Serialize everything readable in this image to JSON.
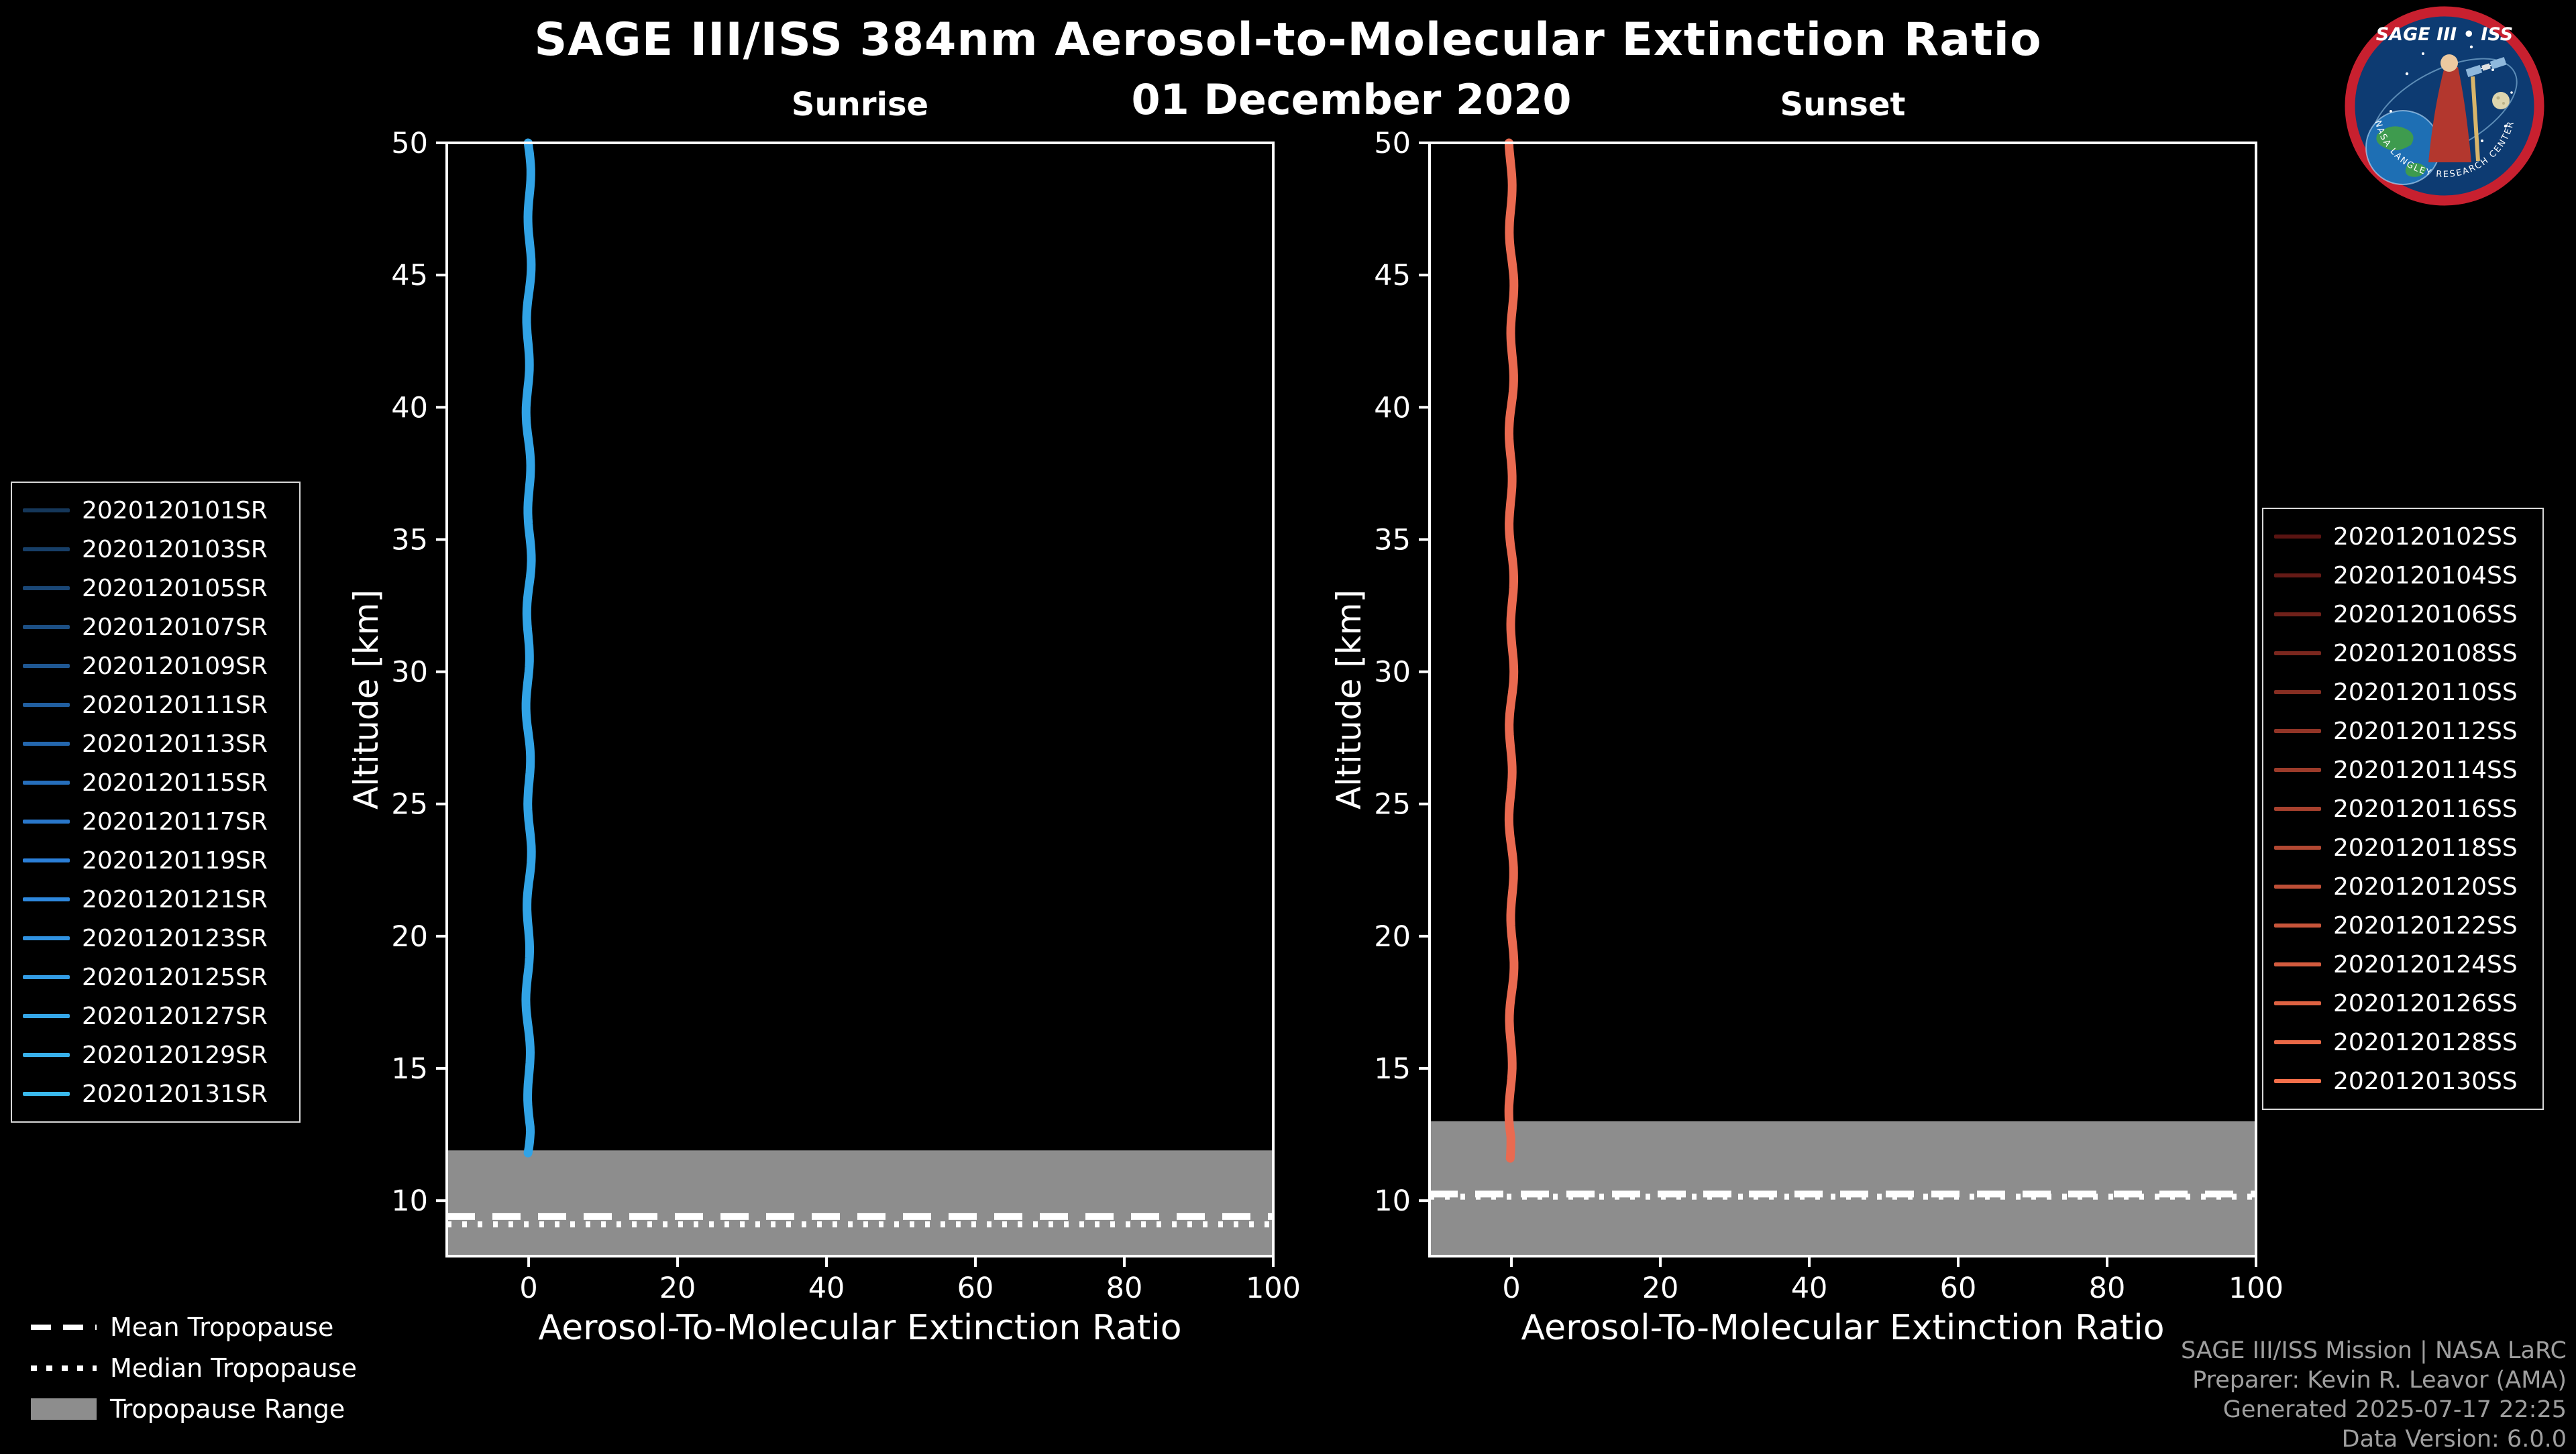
{
  "header": {
    "title": "SAGE III/ISS 384nm Aerosol-to-Molecular Extinction Ratio",
    "date": "01 December 2020"
  },
  "logo": {
    "title": "SAGE III • ISS",
    "ring_text": "NASA LANGLEY RESEARCH CENTER",
    "ring_color": "#c8202f",
    "field_color": "#0d3b72"
  },
  "chart_data": [
    {
      "type": "line",
      "panel": "sunrise",
      "title": "Sunrise",
      "xlabel": "Aerosol-To-Molecular Extinction Ratio",
      "ylabel": "Altitude [km]",
      "xlim": [
        -11,
        100
      ],
      "ylim": [
        7.9,
        50
      ],
      "xticks": [
        0,
        20,
        40,
        60,
        80,
        100
      ],
      "yticks": [
        10,
        15,
        20,
        25,
        30,
        35,
        40,
        45,
        50
      ],
      "grid": false,
      "background": "#000000",
      "profile": {
        "description": "All sunrise extinction-ratio profiles cluster near 0 from ~11.7 km up to 50 km",
        "x_value": 0,
        "alt_min": 11.7,
        "alt_max": 50,
        "color": "#31a3e6",
        "line_width": 13
      },
      "tropopause": {
        "range_top_km": 11.9,
        "range_bottom_km": 7.9,
        "mean_km": 9.4,
        "median_km": 9.1
      },
      "legend": {
        "position": "outside-left",
        "entries": [
          {
            "label": "2020120101SR",
            "color": "#15375a"
          },
          {
            "label": "2020120103SR",
            "color": "#173f68"
          },
          {
            "label": "2020120105SR",
            "color": "#1a4776"
          },
          {
            "label": "2020120107SR",
            "color": "#1c4f84"
          },
          {
            "label": "2020120109SR",
            "color": "#1f5792"
          },
          {
            "label": "2020120111SR",
            "color": "#215fa0"
          },
          {
            "label": "2020120113SR",
            "color": "#2467ae"
          },
          {
            "label": "2020120115SR",
            "color": "#266fbc"
          },
          {
            "label": "2020120117SR",
            "color": "#2977ca"
          },
          {
            "label": "2020120119SR",
            "color": "#2b7fd8"
          },
          {
            "label": "2020120121SR",
            "color": "#2e88dd"
          },
          {
            "label": "2020120123SR",
            "color": "#3092e1"
          },
          {
            "label": "2020120125SR",
            "color": "#339ce4"
          },
          {
            "label": "2020120127SR",
            "color": "#35a6e7"
          },
          {
            "label": "2020120129SR",
            "color": "#38b0ea"
          },
          {
            "label": "2020120131SR",
            "color": "#3abaed"
          }
        ]
      }
    },
    {
      "type": "line",
      "panel": "sunset",
      "title": "Sunset",
      "xlabel": "Aerosol-To-Molecular Extinction Ratio",
      "ylabel": "Altitude [km]",
      "xlim": [
        -11,
        100
      ],
      "ylim": [
        7.9,
        50
      ],
      "xticks": [
        0,
        20,
        40,
        60,
        80,
        100
      ],
      "yticks": [
        10,
        15,
        20,
        25,
        30,
        35,
        40,
        45,
        50
      ],
      "grid": false,
      "background": "#000000",
      "profile": {
        "description": "All sunset extinction-ratio profiles cluster near 0 from ~11.4 km up to 50 km",
        "x_value": 0,
        "alt_min": 11.4,
        "alt_max": 50,
        "color": "#ea6a50",
        "line_width": 13
      },
      "tropopause": {
        "range_top_km": 13.0,
        "range_bottom_km": 7.9,
        "mean_km": 10.25,
        "median_km": 10.15
      },
      "legend": {
        "position": "outside-right",
        "entries": [
          {
            "label": "2020120102SS",
            "color": "#5a1412"
          },
          {
            "label": "2020120104SS",
            "color": "#651a16"
          },
          {
            "label": "2020120106SS",
            "color": "#70211a"
          },
          {
            "label": "2020120108SS",
            "color": "#7b271e"
          },
          {
            "label": "2020120110SS",
            "color": "#862e22"
          },
          {
            "label": "2020120112SS",
            "color": "#913426"
          },
          {
            "label": "2020120114SS",
            "color": "#9c3b2a"
          },
          {
            "label": "2020120116SS",
            "color": "#a7412e"
          },
          {
            "label": "2020120118SS",
            "color": "#b24832"
          },
          {
            "label": "2020120120SS",
            "color": "#bd4e36"
          },
          {
            "label": "2020120122SS",
            "color": "#c8553a"
          },
          {
            "label": "2020120124SS",
            "color": "#d35b3e"
          },
          {
            "label": "2020120126SS",
            "color": "#de6242"
          },
          {
            "label": "2020120128SS",
            "color": "#e96846"
          },
          {
            "label": "2020120130SS",
            "color": "#f46f4a"
          }
        ]
      }
    }
  ],
  "tropopause_legend": {
    "mean_label": "Mean Tropopause",
    "median_label": "Median Tropopause",
    "range_label": "Tropopause Range",
    "range_color": "#8d8d8d"
  },
  "footer": {
    "line1": "SAGE III/ISS Mission | NASA LaRC",
    "line2": "Preparer: Kevin R. Leavor (AMA)",
    "line3": "Generated 2025-07-17 22:25",
    "line4": "Data Version: 6.0.0"
  }
}
